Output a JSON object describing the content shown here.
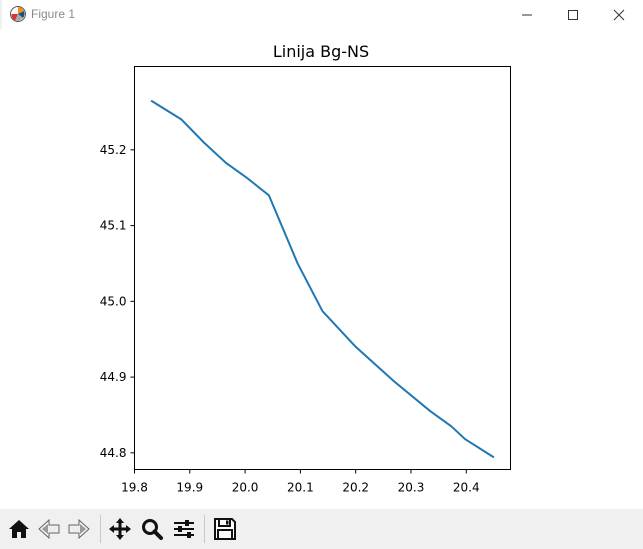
{
  "window": {
    "title": "Figure 1"
  },
  "figure": {
    "title": "Linija Bg-NS"
  },
  "chart_data": {
    "type": "line",
    "title": "Linija Bg-NS",
    "xlabel": "",
    "ylabel": "",
    "xlim": [
      19.8,
      20.48
    ],
    "ylim": [
      44.778,
      45.31
    ],
    "grid": false,
    "x_ticks": [
      "19.8",
      "19.9",
      "20.0",
      "20.1",
      "20.2",
      "20.3",
      "20.4"
    ],
    "y_ticks": [
      "44.8",
      "44.9",
      "45.0",
      "45.1",
      "45.2"
    ],
    "series": [
      {
        "color": "#1f77b4",
        "x": [
          19.83,
          19.885,
          19.925,
          19.965,
          20.005,
          20.043,
          20.095,
          20.14,
          20.2,
          20.27,
          20.335,
          20.373,
          20.398,
          20.45
        ],
        "y": [
          45.265,
          45.24,
          45.21,
          45.183,
          45.162,
          45.14,
          45.05,
          44.987,
          44.94,
          44.894,
          44.855,
          44.835,
          44.818,
          44.794
        ]
      }
    ]
  },
  "toolbar": {
    "buttons": [
      {
        "icon": "home-icon"
      },
      {
        "icon": "back-arrow-icon"
      },
      {
        "icon": "forward-arrow-icon"
      },
      {
        "icon": "pan-move-icon"
      },
      {
        "icon": "zoom-magnifier-icon"
      },
      {
        "icon": "configure-subplots-icon"
      },
      {
        "icon": "save-disk-icon"
      }
    ]
  }
}
